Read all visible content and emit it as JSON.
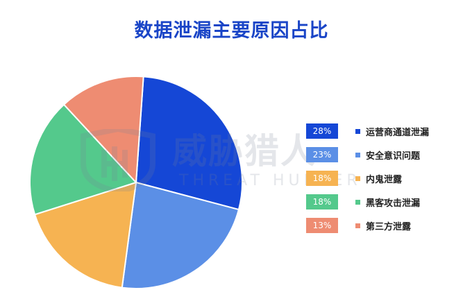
{
  "chart_data": {
    "type": "pie",
    "title": "数据泄漏主要原因占比",
    "slices": [
      {
        "label": "运营商通道泄漏",
        "value": 28,
        "display": "28%",
        "color": "#1547d6"
      },
      {
        "label": "安全意识问题",
        "value": 23,
        "display": "23%",
        "color": "#5b8fe6"
      },
      {
        "label": "内鬼泄露",
        "value": 18,
        "display": "18%",
        "color": "#f6b352"
      },
      {
        "label": "黑客攻击泄漏",
        "value": 18,
        "display": "18%",
        "color": "#54c98c"
      },
      {
        "label": "第三方泄露",
        "value": 13,
        "display": "13%",
        "color": "#ee8c72"
      }
    ],
    "legend_position": "right"
  },
  "watermark": {
    "text_cn": "威胁猎人",
    "text_en": "THREAT HUNTER"
  }
}
